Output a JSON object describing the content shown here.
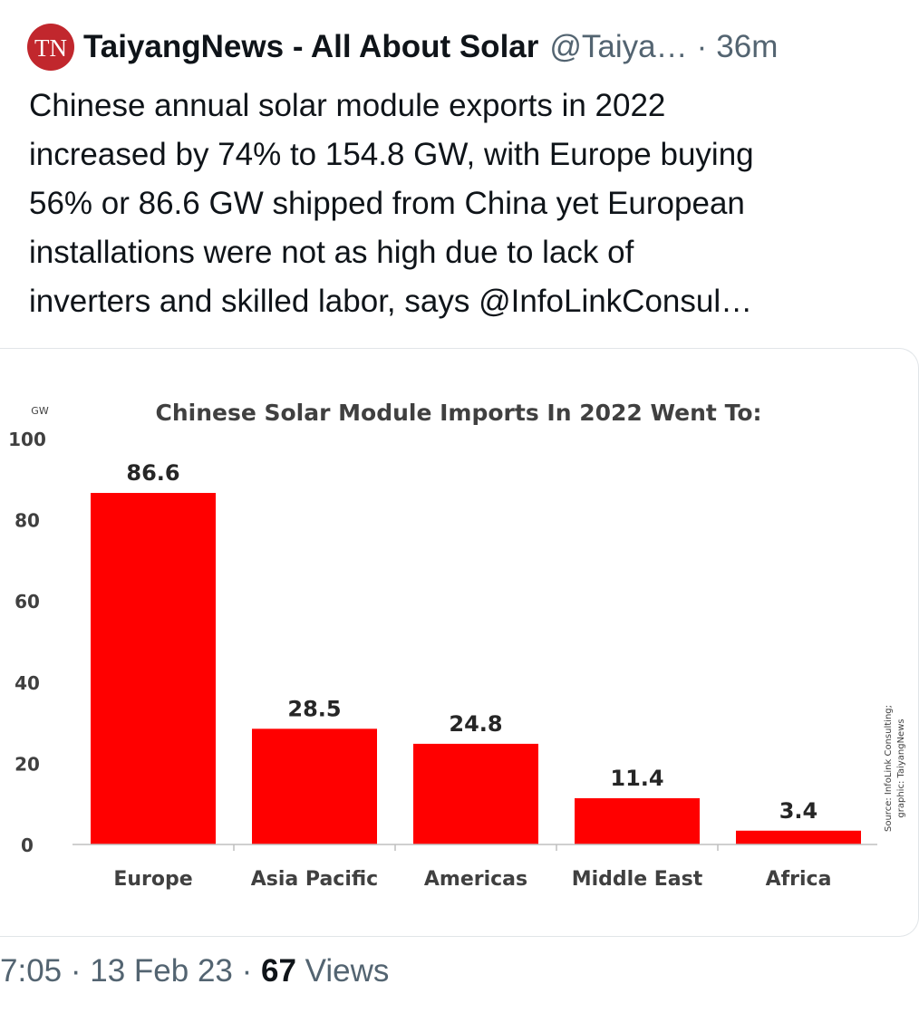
{
  "tweet": {
    "avatar_initials": "TN",
    "author_name": "TaiyangNews - All About Solar",
    "handle": "@Taiya…",
    "separator": "·",
    "time_ago": "36m",
    "text_lines": [
      "Chinese annual solar module exports in 2022",
      "increased by 74% to 154.8 GW, with Europe buying",
      "56% or 86.6 GW shipped from China yet European",
      "installations were not as high due to lack of",
      "inverters and skilled labor, says @InfoLinkConsul…"
    ]
  },
  "meta": {
    "time": "7:05",
    "sep1": "·",
    "date": "13 Feb 23",
    "sep2": "·",
    "views_count": "67",
    "views_label": "Views"
  },
  "chart_data": {
    "type": "bar",
    "title": "Chinese Solar Module Imports In 2022 Went To:",
    "unit_label": "GW",
    "categories": [
      "Europe",
      "Asia Pacific",
      "Americas",
      "Middle East",
      "Africa"
    ],
    "values": [
      86.6,
      28.5,
      24.8,
      11.4,
      3.4
    ],
    "data_labels": [
      "86.6",
      "28.5",
      "24.8",
      "11.4",
      "3.4"
    ],
    "ylim": [
      0,
      100
    ],
    "yticks": [
      0,
      20,
      40,
      60,
      80,
      100
    ],
    "grid": false,
    "bar_color": "#ff0000",
    "source_lines": [
      "Source: InfoLink Consulting;",
      "graphic: TaiyangNews"
    ]
  }
}
